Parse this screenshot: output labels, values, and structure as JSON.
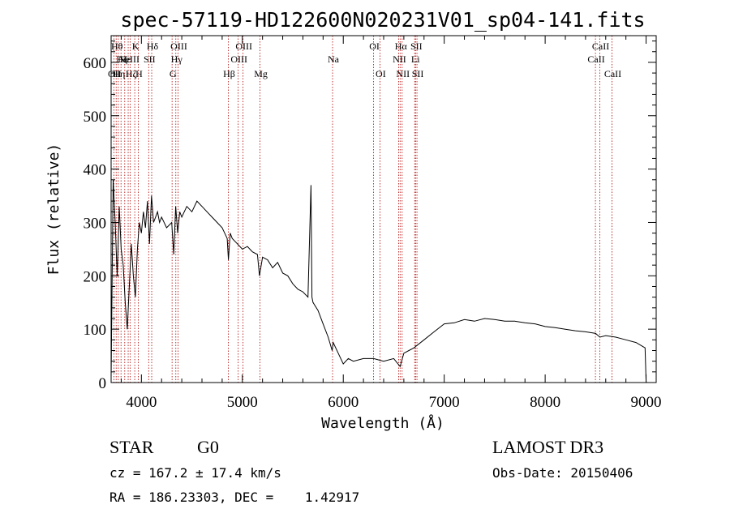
{
  "info": {
    "object_class": "STAR",
    "subclass": "G0",
    "survey": "LAMOST DR3",
    "redshift": "cz = 167.2 ± 17.4 km/s",
    "obs_date": "Obs-Date: 20150406",
    "coords": "RA = 186.23303, DEC =    1.42917"
  },
  "chart_data": {
    "type": "line",
    "title": "spec-57119-HD122600N020231V01_sp04-141.fits",
    "xlabel": "Wavelength (Å)",
    "ylabel": "Flux (relative)",
    "xlim": [
      3700,
      9100
    ],
    "ylim": [
      0,
      650
    ],
    "xticks": [
      4000,
      5000,
      6000,
      7000,
      8000,
      9000
    ],
    "yticks": [
      0,
      100,
      200,
      300,
      400,
      500,
      600
    ],
    "series": [
      {
        "name": "flux",
        "x": [
          3700,
          3720,
          3740,
          3760,
          3780,
          3800,
          3820,
          3840,
          3860,
          3880,
          3900,
          3920,
          3940,
          3960,
          3980,
          4000,
          4020,
          4040,
          4060,
          4080,
          4100,
          4120,
          4140,
          4160,
          4180,
          4200,
          4250,
          4300,
          4320,
          4340,
          4360,
          4380,
          4400,
          4450,
          4500,
          4550,
          4600,
          4650,
          4700,
          4750,
          4800,
          4850,
          4862,
          4880,
          4900,
          4950,
          5000,
          5050,
          5100,
          5150,
          5170,
          5200,
          5250,
          5300,
          5350,
          5400,
          5450,
          5500,
          5550,
          5600,
          5650,
          5680,
          5690,
          5700,
          5750,
          5800,
          5850,
          5890,
          5900,
          5950,
          6000,
          6050,
          6100,
          6200,
          6300,
          6400,
          6500,
          6563,
          6600,
          6650,
          6700,
          6800,
          6900,
          7000,
          7100,
          7200,
          7300,
          7400,
          7500,
          7600,
          7700,
          7800,
          7900,
          8000,
          8100,
          8200,
          8300,
          8400,
          8500,
          8542,
          8600,
          8700,
          8800,
          8900,
          8990,
          9000
        ],
        "y": [
          10,
          380,
          300,
          200,
          330,
          250,
          220,
          150,
          100,
          180,
          260,
          200,
          160,
          250,
          300,
          280,
          320,
          290,
          340,
          260,
          350,
          300,
          310,
          320,
          300,
          310,
          290,
          300,
          240,
          330,
          280,
          320,
          310,
          330,
          320,
          340,
          330,
          320,
          310,
          300,
          290,
          270,
          230,
          280,
          270,
          260,
          250,
          255,
          245,
          240,
          200,
          235,
          230,
          215,
          225,
          205,
          200,
          185,
          175,
          170,
          160,
          370,
          160,
          150,
          135,
          110,
          85,
          60,
          75,
          55,
          35,
          45,
          40,
          45,
          45,
          40,
          45,
          30,
          55,
          60,
          65,
          80,
          95,
          110,
          112,
          118,
          115,
          120,
          118,
          115,
          115,
          112,
          110,
          105,
          103,
          100,
          97,
          95,
          92,
          85,
          88,
          85,
          80,
          75,
          65,
          0
        ]
      }
    ],
    "lines": [
      {
        "wave": 3727,
        "label": "OII",
        "row": 3
      },
      {
        "wave": 3750,
        "label": "Hθ",
        "row": 1
      },
      {
        "wave": 3771,
        "label": "Hη",
        "row": 3
      },
      {
        "wave": 3798,
        "label": "Hζ",
        "row": 2
      },
      {
        "wave": 3835,
        "label": "Hε",
        "row": 2
      },
      {
        "wave": 3869,
        "label": "NeIII",
        "row": 2
      },
      {
        "wave": 3890,
        "label": "Hζ",
        "row": 3
      },
      {
        "wave": 3934,
        "label": "K",
        "row": 1
      },
      {
        "wave": 3969,
        "label": "H",
        "row": 3
      },
      {
        "wave": 4072,
        "label": "SII",
        "row": 2
      },
      {
        "wave": 4102,
        "label": "Hδ",
        "row": 1
      },
      {
        "wave": 4304,
        "label": "G",
        "row": 3
      },
      {
        "wave": 4341,
        "label": "Hγ",
        "row": 2
      },
      {
        "wave": 4363,
        "label": "OIII",
        "row": 1
      },
      {
        "wave": 4861,
        "label": "Hβ",
        "row": 3
      },
      {
        "wave": 4959,
        "label": "OIII",
        "row": 2
      },
      {
        "wave": 5007,
        "label": "OIII",
        "row": 1
      },
      {
        "wave": 5175,
        "label": "Mg",
        "row": 3
      },
      {
        "wave": 5894,
        "label": "Na",
        "row": 2
      },
      {
        "wave": 6300,
        "label": "OI",
        "row": 1
      },
      {
        "wave": 6363,
        "label": "OI",
        "row": 3
      },
      {
        "wave": 6548,
        "label": "NII",
        "row": 2
      },
      {
        "wave": 6563,
        "label": "Hα",
        "row": 1
      },
      {
        "wave": 6583,
        "label": "NII",
        "row": 3
      },
      {
        "wave": 6707,
        "label": "Li",
        "row": 2
      },
      {
        "wave": 6716,
        "label": "SII",
        "row": 1
      },
      {
        "wave": 6730,
        "label": "SII",
        "row": 3
      },
      {
        "wave": 8498,
        "label": "CaII",
        "row": 2
      },
      {
        "wave": 8542,
        "label": "CaII",
        "row": 1
      },
      {
        "wave": 8662,
        "label": "CaII",
        "row": 3
      }
    ]
  }
}
